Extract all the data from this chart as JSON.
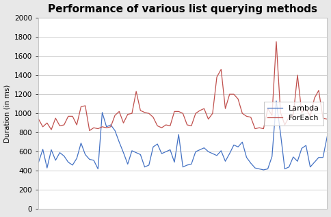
{
  "title": "Performance of various list querying methods",
  "ylabel": "Duration (in ms)",
  "ylim": [
    0,
    2000
  ],
  "yticks": [
    0,
    200,
    400,
    600,
    800,
    1000,
    1200,
    1400,
    1600,
    1800,
    2000
  ],
  "lambda_color": "#4472C4",
  "foreach_color": "#C0504D",
  "legend_labels": [
    "Lambda",
    "ForEach"
  ],
  "fig_facecolor": "#E8E8E8",
  "ax_facecolor": "#FFFFFF",
  "grid_color": "#C8C8C8",
  "lambda": [
    490,
    625,
    430,
    620,
    510,
    590,
    555,
    490,
    460,
    530,
    690,
    570,
    520,
    510,
    420,
    1010,
    860,
    880,
    820,
    700,
    590,
    470,
    610,
    590,
    570,
    440,
    460,
    650,
    680,
    580,
    600,
    620,
    490,
    780,
    440,
    460,
    470,
    600,
    620,
    640,
    600,
    580,
    560,
    610,
    500,
    580,
    670,
    650,
    700,
    540,
    480,
    430,
    420,
    410,
    420,
    550,
    1130,
    790,
    420,
    440,
    545,
    500,
    635,
    665,
    440,
    490,
    540,
    540,
    760
  ],
  "foreach": [
    940,
    860,
    900,
    830,
    950,
    870,
    880,
    970,
    970,
    880,
    1070,
    1080,
    820,
    850,
    840,
    860,
    850,
    860,
    980,
    1020,
    900,
    990,
    1000,
    1230,
    1030,
    1010,
    1000,
    960,
    870,
    850,
    880,
    870,
    1020,
    1020,
    1000,
    880,
    870,
    1000,
    1030,
    1050,
    940,
    1000,
    1380,
    1460,
    1050,
    1200,
    1200,
    1150,
    1000,
    970,
    960,
    840,
    850,
    840,
    1050,
    980,
    1750,
    1010,
    880,
    960,
    980,
    1400,
    1010,
    1050,
    970,
    1160,
    1240,
    950,
    940
  ],
  "title_fontsize": 11,
  "tick_fontsize": 7.5,
  "ylabel_fontsize": 7.5,
  "legend_fontsize": 8
}
